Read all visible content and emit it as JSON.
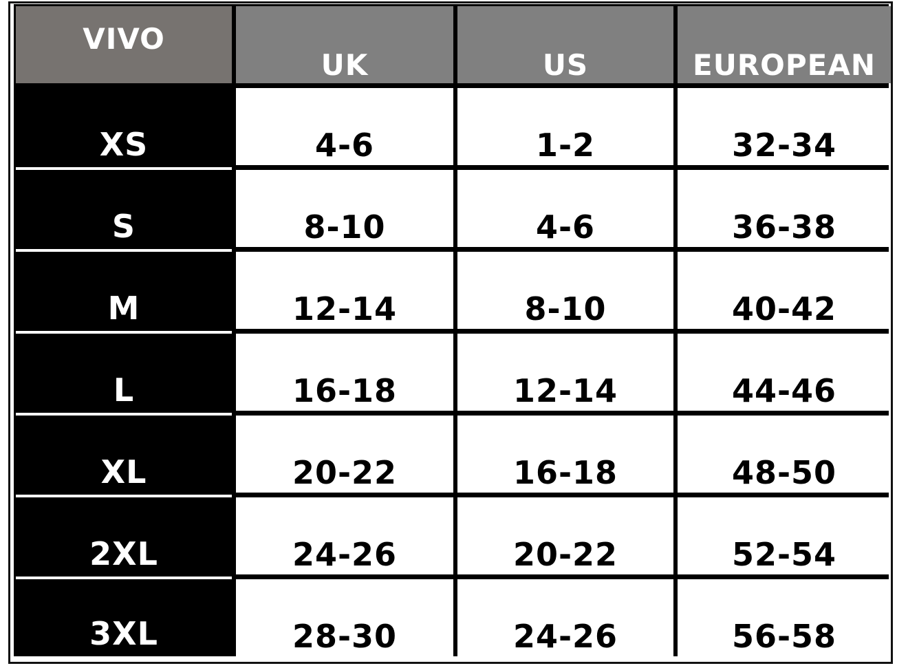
{
  "headers": [
    "VIVO",
    "UK",
    "US",
    "EUROPEAN"
  ],
  "rows": [
    {
      "size": "XS",
      "uk": "4-6",
      "us": "1-2",
      "eu": "32-34"
    },
    {
      "size": "S",
      "uk": "8-10",
      "us": "4-6",
      "eu": "36-38"
    },
    {
      "size": "M",
      "uk": "12-14",
      "us": "8-10",
      "eu": "40-42"
    },
    {
      "size": "L",
      "uk": "16-18",
      "us": "12-14",
      "eu": "44-46"
    },
    {
      "size": "XL",
      "uk": "20-22",
      "us": "16-18",
      "eu": "48-50"
    },
    {
      "size": "2XL",
      "uk": "24-26",
      "us": "20-22",
      "eu": "52-54"
    },
    {
      "size": "3XL",
      "uk": "28-30",
      "us": "24-26",
      "eu": "56-58"
    }
  ],
  "colors": {
    "header_gray": "#808080",
    "brand_header": "#777370",
    "size_column": "#000000"
  }
}
